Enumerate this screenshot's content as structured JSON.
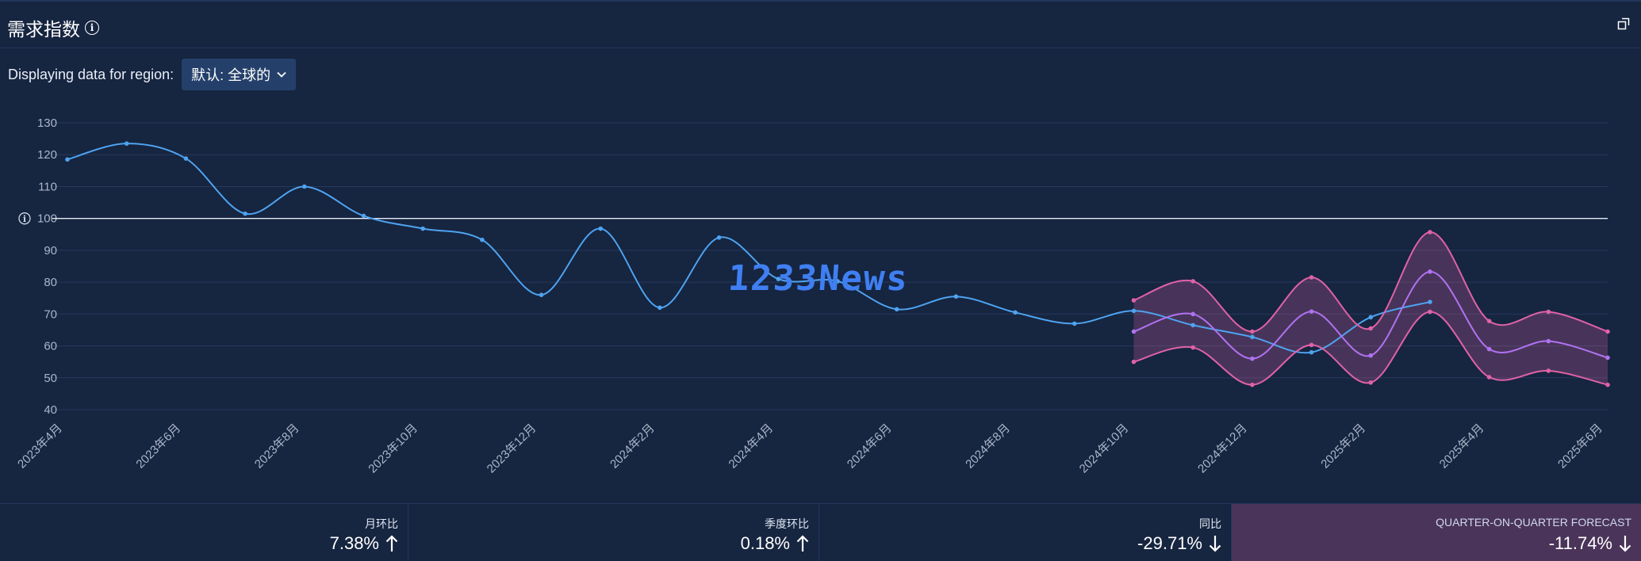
{
  "header": {
    "title": "需求指数",
    "info_icon": "info-icon",
    "expand_icon": "expand-icon"
  },
  "region": {
    "label": "Displaying data for region:",
    "selected": "默认: 全球的"
  },
  "watermark": "1233News",
  "metrics": [
    {
      "label": "月环比",
      "value": "7.38%",
      "direction": "up"
    },
    {
      "label": "季度环比",
      "value": "0.18%",
      "direction": "up"
    },
    {
      "label": "同比",
      "value": "-29.71%",
      "direction": "down"
    },
    {
      "label": "QUARTER-ON-QUARTER FORECAST",
      "value": "-11.74%",
      "direction": "down"
    }
  ],
  "chart_data": {
    "type": "line",
    "title": "",
    "xlabel": "",
    "ylabel": "",
    "ylim": [
      40,
      130
    ],
    "yticks": [
      40,
      50,
      60,
      70,
      80,
      90,
      100,
      110,
      120,
      130
    ],
    "grid": true,
    "baseline": 100,
    "x": [
      "2023年4月",
      "2023年5月",
      "2023年6月",
      "2023年7月",
      "2023年8月",
      "2023年9月",
      "2023年10月",
      "2023年11月",
      "2023年12月",
      "2024年1月",
      "2024年2月",
      "2024年3月",
      "2024年4月",
      "2024年5月",
      "2024年6月",
      "2024年7月",
      "2024年8月",
      "2024年9月",
      "2024年10月",
      "2024年11月",
      "2024年12月",
      "2025年1月",
      "2025年2月",
      "2025年3月",
      "2025年4月",
      "2025年5月",
      "2025年6月"
    ],
    "xtick_labels": [
      "2023年4月",
      "2023年6月",
      "2023年8月",
      "2023年10月",
      "2023年12月",
      "2024年2月",
      "2024年4月",
      "2024年6月",
      "2024年8月",
      "2024年10月",
      "2024年12月",
      "2025年2月",
      "2025年4月",
      "2025年6月"
    ],
    "series": [
      {
        "values": [
          118.5,
          123.5,
          118.8,
          101.5,
          110,
          100.8,
          96.8,
          93.3,
          76,
          96.8,
          72,
          94,
          81,
          80.3,
          71.5,
          75.5,
          70.5,
          67,
          71,
          66.5,
          62.8,
          58,
          69,
          73.8,
          null,
          null,
          null
        ],
        "color": "#4ea3f0"
      },
      {
        "values": [
          null,
          null,
          null,
          null,
          null,
          null,
          null,
          null,
          null,
          null,
          null,
          null,
          null,
          null,
          null,
          null,
          null,
          null,
          64.5,
          70,
          56,
          70.8,
          57,
          83.3,
          59,
          61.5,
          56.3
        ],
        "color": "#b072f0"
      },
      {
        "values": [
          null,
          null,
          null,
          null,
          null,
          null,
          null,
          null,
          null,
          null,
          null,
          null,
          null,
          null,
          null,
          null,
          null,
          null,
          74.3,
          80.3,
          64.5,
          81.5,
          65.5,
          95.7,
          67.8,
          70.7,
          64.5
        ],
        "color": "#e062a6"
      },
      {
        "values": [
          null,
          null,
          null,
          null,
          null,
          null,
          null,
          null,
          null,
          null,
          null,
          null,
          null,
          null,
          null,
          null,
          null,
          null,
          55,
          59.5,
          47.8,
          60.3,
          48.5,
          70.7,
          50.2,
          52.2,
          47.8
        ],
        "color": "#e062a6"
      }
    ]
  }
}
